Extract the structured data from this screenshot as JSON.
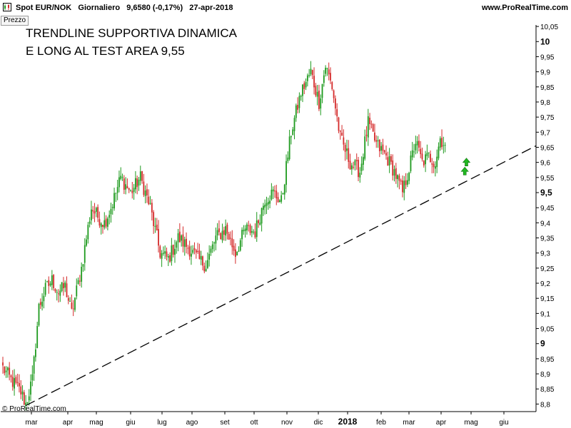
{
  "header": {
    "title": "Spot EUR/NOK   Giornaliero   9,6580 (-0,17%)   27-apr-2018",
    "url": "www.ProRealTime.com",
    "icon": "chart-app-icon"
  },
  "panel_label": "Prezzo",
  "annotation": {
    "line1": "TRENDLINE SUPPORTIVA DINAMICA",
    "line2": "E LONG AL TEST AREA 9,55"
  },
  "footer": {
    "copyright": "© ProRealTime.com"
  },
  "colors": {
    "up": "#1e9a1e",
    "down": "#d42a2a",
    "trendline": "#000000",
    "arrow": "#22b822",
    "axis": "#000000"
  },
  "chart_data": {
    "type": "candlestick",
    "ylim": [
      8.775,
      10.055
    ],
    "y_ticks": [
      "10,05",
      "10",
      "9,95",
      "9,9",
      "9,85",
      "9,8",
      "9,75",
      "9,7",
      "9,65",
      "9,6",
      "9,55",
      "9,5",
      "9,45",
      "9,4",
      "9,35",
      "9,3",
      "9,25",
      "9,2",
      "9,15",
      "9,1",
      "9,05",
      "9",
      "8,95",
      "8,9",
      "8,85",
      "8,8"
    ],
    "y_ticks_bold": [
      "10",
      "9,5",
      "9"
    ],
    "month_labels": [
      "mar",
      "apr",
      "mag",
      "giu",
      "lug",
      "ago",
      "set",
      "ott",
      "nov",
      "dic",
      "2018",
      "feb",
      "mar",
      "apr",
      "mag",
      "giu"
    ],
    "month_label_bold": [
      "2018"
    ],
    "anchors": [
      {
        "i": 0,
        "v": 8.92
      },
      {
        "i": 5,
        "v": 8.88
      },
      {
        "i": 11,
        "v": 8.84
      },
      {
        "i": 14,
        "v": 8.8
      },
      {
        "i": 18,
        "v": 8.88
      },
      {
        "i": 22,
        "v": 9.12
      },
      {
        "i": 26,
        "v": 9.18
      },
      {
        "i": 30,
        "v": 9.21
      },
      {
        "i": 34,
        "v": 9.17
      },
      {
        "i": 38,
        "v": 9.19
      },
      {
        "i": 42,
        "v": 9.1
      },
      {
        "i": 48,
        "v": 9.25
      },
      {
        "i": 54,
        "v": 9.45
      },
      {
        "i": 58,
        "v": 9.42
      },
      {
        "i": 62,
        "v": 9.4
      },
      {
        "i": 66,
        "v": 9.45
      },
      {
        "i": 72,
        "v": 9.55
      },
      {
        "i": 78,
        "v": 9.5
      },
      {
        "i": 84,
        "v": 9.55
      },
      {
        "i": 90,
        "v": 9.45
      },
      {
        "i": 96,
        "v": 9.3
      },
      {
        "i": 101,
        "v": 9.28
      },
      {
        "i": 107,
        "v": 9.35
      },
      {
        "i": 113,
        "v": 9.32
      },
      {
        "i": 119,
        "v": 9.28
      },
      {
        "i": 124,
        "v": 9.26
      },
      {
        "i": 130,
        "v": 9.35
      },
      {
        "i": 136,
        "v": 9.38
      },
      {
        "i": 142,
        "v": 9.3
      },
      {
        "i": 148,
        "v": 9.38
      },
      {
        "i": 154,
        "v": 9.37
      },
      {
        "i": 160,
        "v": 9.48
      },
      {
        "i": 165,
        "v": 9.5
      },
      {
        "i": 170,
        "v": 9.47
      },
      {
        "i": 176,
        "v": 9.7
      },
      {
        "i": 182,
        "v": 9.83
      },
      {
        "i": 188,
        "v": 9.9
      },
      {
        "i": 193,
        "v": 9.8
      },
      {
        "i": 197,
        "v": 9.92
      },
      {
        "i": 201,
        "v": 9.85
      },
      {
        "i": 206,
        "v": 9.68
      },
      {
        "i": 212,
        "v": 9.6
      },
      {
        "i": 218,
        "v": 9.57
      },
      {
        "i": 223,
        "v": 9.73
      },
      {
        "i": 228,
        "v": 9.66
      },
      {
        "i": 234,
        "v": 9.62
      },
      {
        "i": 239,
        "v": 9.57
      },
      {
        "i": 244,
        "v": 9.5
      },
      {
        "i": 248,
        "v": 9.58
      },
      {
        "i": 252,
        "v": 9.67
      },
      {
        "i": 256,
        "v": 9.6
      },
      {
        "i": 260,
        "v": 9.62
      },
      {
        "i": 264,
        "v": 9.6
      },
      {
        "i": 267,
        "v": 9.68
      },
      {
        "i": 270,
        "v": 9.658
      }
    ],
    "trendline": {
      "from": {
        "i": 14,
        "v": 8.795
      },
      "to_edge_v": 9.655,
      "style": "dashed"
    },
    "signal_arrows": [
      {
        "i": 282,
        "v": 9.57,
        "direction": "up"
      },
      {
        "i": 283,
        "v": 9.6,
        "direction": "up"
      }
    ]
  }
}
